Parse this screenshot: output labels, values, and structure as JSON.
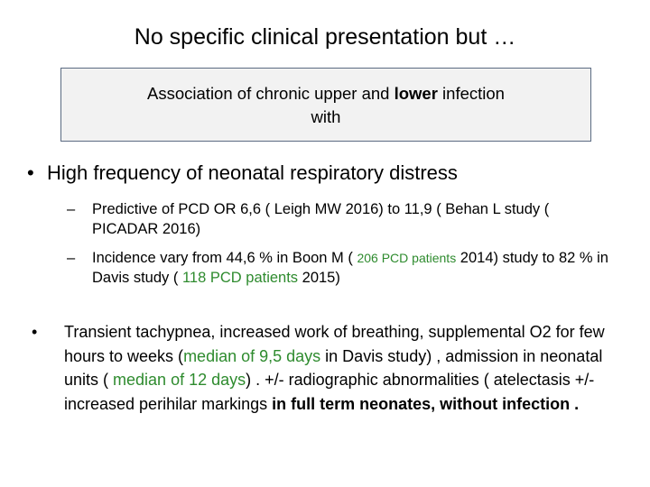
{
  "title": "No specific clinical presentation  but …",
  "callout": {
    "line1_pre": "Association of chronic upper and ",
    "line1_bold": "lower",
    "line1_post": " infection",
    "line2": "with"
  },
  "bullet1": {
    "marker": "•",
    "text": "High frequency of neonatal respiratory distress"
  },
  "sub1": {
    "marker": "–",
    "text_a": "Predictive of PCD  OR 6,6 ( Leigh MW 2016) to 11,9 (  Behan L study ( PICADAR 2016)"
  },
  "sub2": {
    "marker": "–",
    "text_a": "Incidence vary from 44,6 % in Boon  M ( ",
    "green_a": "206 PCD patients",
    "text_b": " 2014) study to 82 % in Davis study   ( ",
    "green_b": "118 PCD patients",
    "text_c": " 2015)"
  },
  "bullet2": {
    "marker": "•",
    "text_a": "Transient tachypnea, increased work of breathing, supplemental O2 for few hours to weeks (",
    "green_a": "median of  9,5 days",
    "text_b": " in Davis study)  , admission in neonatal units ( ",
    "green_b": "median of 12 days",
    "text_c": ")  . +/- radiographic abnormalities ( atelectasis +/- increased perihilar markings ",
    "bold_a": "in full term neonates, without infection ."
  },
  "colors": {
    "accent_green": "#2e8b2e",
    "callout_border": "#5b6b82",
    "callout_fill": "#f2f2f2"
  }
}
